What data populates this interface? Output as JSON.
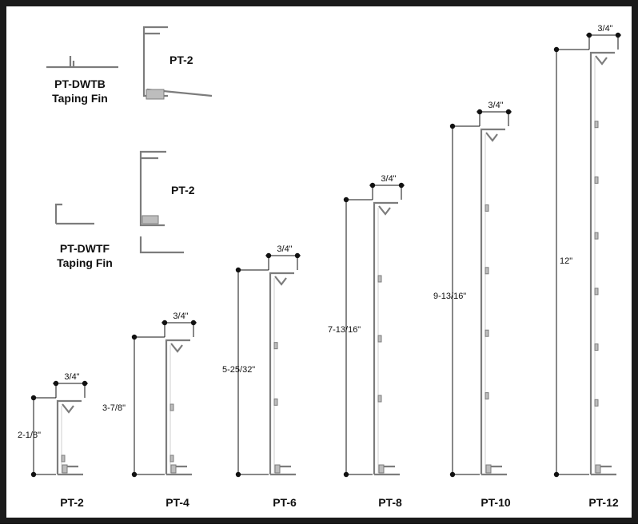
{
  "top_fins": [
    {
      "name": "PT-DWTB",
      "subtitle": "Taping Fin",
      "profile": "PT-2"
    },
    {
      "name": "PT-DWTF",
      "subtitle": "Taping Fin",
      "profile": "PT-2"
    }
  ],
  "profiles": [
    {
      "name": "PT-2",
      "height": "2-1/8\"",
      "width": "3/4\""
    },
    {
      "name": "PT-4",
      "height": "3-7/8\"",
      "width": "3/4\""
    },
    {
      "name": "PT-6",
      "height": "5-25/32\"",
      "width": "3/4\""
    },
    {
      "name": "PT-8",
      "height": "7-13/16\"",
      "width": "3/4\""
    },
    {
      "name": "PT-10",
      "height": "9-13/16\"",
      "width": "3/4\""
    },
    {
      "name": "PT-12",
      "height": "12\"",
      "width": "3/4\""
    }
  ],
  "colors": {
    "frame": "#1a1a1a",
    "profile": "#7c7c7c",
    "text": "#111111"
  }
}
